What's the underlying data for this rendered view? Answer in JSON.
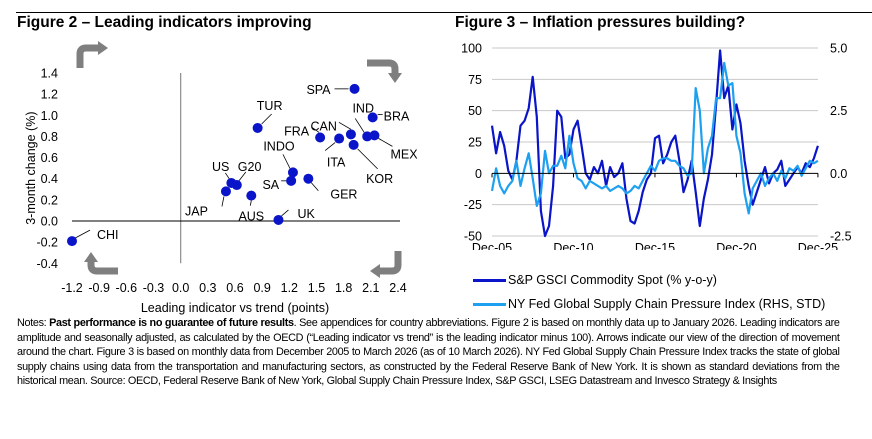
{
  "chart_data": [
    {
      "type": "scatter",
      "title": "Figure 2 – Leading indicators improving",
      "xlabel": "Leading indicator  vs trend (points)",
      "ylabel": "3-month change (%)",
      "xlim": [
        -1.2,
        2.4
      ],
      "ylim": [
        -0.4,
        1.4
      ],
      "xticks": [
        "-1.2",
        "-0.9",
        "-0.6",
        "-0.3",
        "0.0",
        "0.3",
        "0.6",
        "0.9",
        "1.2",
        "1.5",
        "1.8",
        "2.1",
        "2.4"
      ],
      "yticks": [
        "-0.4",
        "-0.2",
        "0.0",
        "0.2",
        "0.4",
        "0.6",
        "0.8",
        "1.0",
        "1.2",
        "1.4"
      ],
      "point_color": "#0a14c8",
      "arrow_color": "#7f7f7f",
      "arrows": [
        "top-left: up then right",
        "top-right: right then down",
        "bottom-right: down then left",
        "bottom-left: left then up"
      ],
      "points": [
        {
          "label": "SPA",
          "x": 1.92,
          "y": 1.25
        },
        {
          "label": "BRA",
          "x": 2.12,
          "y": 0.98
        },
        {
          "label": "TUR",
          "x": 0.85,
          "y": 0.88
        },
        {
          "label": "FRA",
          "x": 1.54,
          "y": 0.79
        },
        {
          "label": "ITA",
          "x": 1.75,
          "y": 0.78
        },
        {
          "label": "CAN",
          "x": 1.88,
          "y": 0.82
        },
        {
          "label": "IND",
          "x": 2.06,
          "y": 0.8
        },
        {
          "label": "MEX",
          "x": 2.14,
          "y": 0.81
        },
        {
          "label": "KOR",
          "x": 1.91,
          "y": 0.72
        },
        {
          "label": "INDO",
          "x": 1.24,
          "y": 0.46
        },
        {
          "label": "SA",
          "x": 1.22,
          "y": 0.38
        },
        {
          "label": "GER",
          "x": 1.41,
          "y": 0.4
        },
        {
          "label": "US",
          "x": 0.56,
          "y": 0.36
        },
        {
          "label": "G20",
          "x": 0.62,
          "y": 0.34
        },
        {
          "label": "JAP",
          "x": 0.5,
          "y": 0.28
        },
        {
          "label": "AUS",
          "x": 0.78,
          "y": 0.24
        },
        {
          "label": "UK",
          "x": 1.08,
          "y": 0.01
        },
        {
          "label": "CHI",
          "x": -1.2,
          "y": -0.19
        }
      ]
    },
    {
      "type": "line",
      "title": "Figure 3 – Inflation pressures building?",
      "xlabel": "",
      "ylabel": "",
      "x_range": [
        "Dec-05",
        "Mar-26"
      ],
      "x_frequency": "quarterly (approximated from monthly chart)",
      "xticks": [
        "Dec-05",
        "Dec-10",
        "Dec-15",
        "Dec-20",
        "Dec-25"
      ],
      "ylim_left": [
        -50,
        100
      ],
      "yticks_left": [
        "-50",
        "-25",
        "0",
        "25",
        "50",
        "75",
        "100"
      ],
      "ylim_right": [
        -2.5,
        5.0
      ],
      "yticks_right": [
        "-2.5",
        "0.0",
        "2.5",
        "5.0"
      ],
      "grid": true,
      "legend_position": "bottom",
      "series": [
        {
          "name": "S&P GSCI Commodity Spot (% y-o-y)",
          "axis": "left",
          "color": "#0a14c8",
          "values": [
            38,
            16,
            33,
            22,
            2,
            -5,
            10,
            38,
            42,
            52,
            77,
            45,
            -30,
            -50,
            -42,
            -10,
            50,
            45,
            12,
            15,
            35,
            42,
            22,
            0,
            -5,
            5,
            0,
            10,
            -10,
            5,
            -3,
            0,
            8,
            -20,
            -38,
            -40,
            -30,
            -15,
            -5,
            0,
            28,
            30,
            8,
            15,
            25,
            30,
            10,
            -15,
            -5,
            10,
            -15,
            -42,
            -20,
            -5,
            15,
            55,
            98,
            60,
            70,
            35,
            55,
            40,
            10,
            -10,
            -25,
            -15,
            -5,
            5,
            -8,
            0,
            3,
            10,
            -10,
            -5,
            0,
            5,
            0,
            8,
            5,
            12,
            22
          ]
        },
        {
          "name": "NY Fed Global Supply Chain Pressure Index (RHS, STD)",
          "axis": "right",
          "color": "#1ea0f0",
          "values": [
            -0.7,
            0.2,
            -0.5,
            -0.8,
            -0.5,
            -0.3,
            0.5,
            -0.5,
            0.2,
            0.8,
            -0.2,
            -1.3,
            -0.8,
            0.9,
            0.0,
            0.3,
            0.3,
            0.7,
            0.2,
            1.5,
            0.4,
            -0.2,
            -0.3,
            -0.6,
            -0.3,
            -0.4,
            -0.5,
            -0.6,
            -0.5,
            -0.7,
            -0.6,
            -0.5,
            -0.6,
            -0.8,
            -0.7,
            -0.5,
            -0.6,
            -0.3,
            0.0,
            0.3,
            0.1,
            0.5,
            0.6,
            0.6,
            0.5,
            0.5,
            0.3,
            0.2,
            -0.1,
            0.0,
            3.4,
            2.5,
            0.0,
            1.0,
            1.5,
            3.0,
            3.0,
            4.4,
            3.5,
            3.6,
            1.5,
            0.8,
            -0.8,
            -1.6,
            -0.6,
            -0.3,
            0.0,
            -0.5,
            -0.2,
            0.0,
            -0.3,
            0.1,
            -0.2,
            0.2,
            0.1,
            0.3,
            -0.1,
            0.2,
            0.5,
            0.4,
            0.5
          ]
        }
      ]
    }
  ],
  "figures": {
    "fig2_title": "Figure 2 – Leading indicators improving",
    "fig3_title": "Figure 3 – Inflation pressures building?"
  },
  "legend": {
    "series1": "S&P GSCI Commodity Spot (% y-o-y)",
    "series2": "NY Fed Global Supply Chain Pressure Index (RHS, STD)"
  },
  "notes": {
    "prefix": "Notes: ",
    "bold": "Past performance is no guarantee of future results",
    "body": ". See appendices for country abbreviations. Figure 2 is based on monthly data up to January 2026. Leading indicators are amplitude and seasonally adjusted, as calculated by the OECD (“Leading indicator vs trend” is the leading indicator minus 100). Arrows indicate our view of the direction of movement around the chart. Figure 3 is based on monthly data from December 2005 to March 2026 (as of 10 March 2026). NY Fed Global Supply Chain Pressure Index tracks the state of global supply chains using data from the transportation and manufacturing sectors, as constructed by the Federal Reserve Bank of New York. It is shown as standard deviations from the historical mean. Source: OECD, Federal Reserve Bank of New York, Global Supply Chain Pressure Index, S&P GSCI, LSEG Datastream and Invesco Strategy & Insights"
  }
}
